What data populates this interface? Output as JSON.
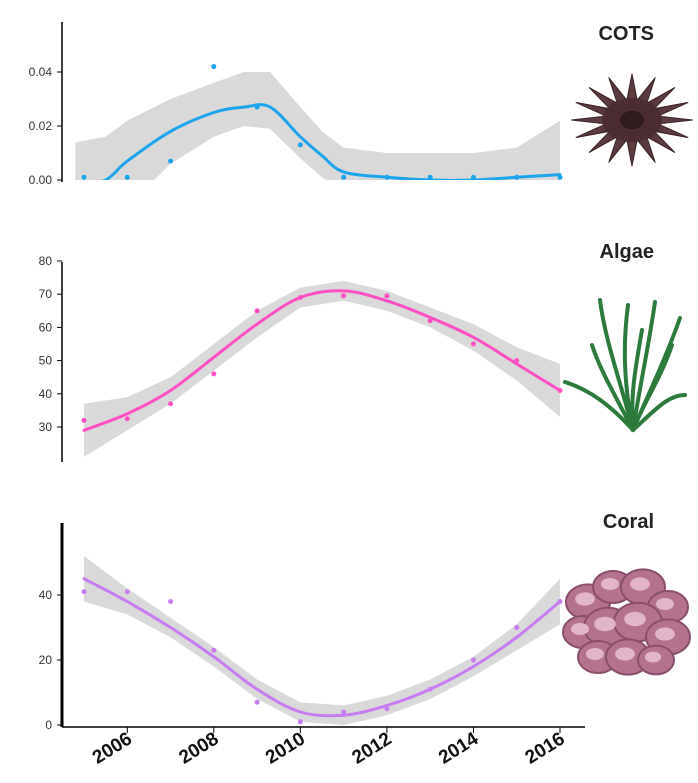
{
  "chart_data": [
    {
      "type": "scatter",
      "title": "COTS",
      "icon": "crown-of-thorns-starfish-icon",
      "color": "#1ca4ec",
      "band_color": "#d9d9d9",
      "ylim": [
        0,
        0.055
      ],
      "yticks": [
        0.0,
        0.02,
        0.04
      ],
      "ytick_labels": [
        "0.00",
        "0.02",
        "0.04"
      ],
      "points": [
        {
          "x": 2005.0,
          "y": 0.001
        },
        {
          "x": 2006.0,
          "y": 0.001
        },
        {
          "x": 2007.0,
          "y": 0.007
        },
        {
          "x": 2008.0,
          "y": 0.042
        },
        {
          "x": 2009.0,
          "y": 0.027
        },
        {
          "x": 2010.0,
          "y": 0.013
        },
        {
          "x": 2011.0,
          "y": 0.001
        },
        {
          "x": 2012.0,
          "y": 0.001
        },
        {
          "x": 2013.0,
          "y": 0.001
        },
        {
          "x": 2014.0,
          "y": 0.001
        },
        {
          "x": 2015.0,
          "y": 0.001
        },
        {
          "x": 2016.0,
          "y": 0.001
        }
      ],
      "smooth_x": [
        2004.8,
        2005.5,
        2006.0,
        2007.0,
        2008.0,
        2008.7,
        2009.3,
        2010.0,
        2010.5,
        2011.0,
        2012.0,
        2013.0,
        2014.0,
        2015.0,
        2016.0
      ],
      "smooth_y": [
        -0.003,
        0.0,
        0.007,
        0.018,
        0.025,
        0.027,
        0.027,
        0.016,
        0.009,
        0.003,
        0.001,
        0.0,
        0.0,
        0.001,
        0.002
      ],
      "smooth_lower": [
        -0.03,
        -0.02,
        -0.01,
        0.006,
        0.016,
        0.02,
        0.019,
        0.008,
        0.001,
        -0.004,
        -0.005,
        -0.005,
        -0.005,
        -0.008,
        -0.015
      ],
      "smooth_upper": [
        0.014,
        0.016,
        0.022,
        0.03,
        0.036,
        0.04,
        0.04,
        0.027,
        0.018,
        0.012,
        0.01,
        0.01,
        0.01,
        0.012,
        0.022
      ]
    },
    {
      "type": "scatter",
      "title": "Algae",
      "icon": "seaweed-icon",
      "color": "#ff4fc4",
      "band_color": "#d9d9d9",
      "ylim": [
        20,
        80
      ],
      "yticks": [
        30,
        40,
        50,
        60,
        70,
        80
      ],
      "ytick_labels": [
        "30",
        "40",
        "50",
        "60",
        "70",
        "80"
      ],
      "points": [
        {
          "x": 2005.0,
          "y": 32
        },
        {
          "x": 2006.0,
          "y": 32.5
        },
        {
          "x": 2007.0,
          "y": 37
        },
        {
          "x": 2008.0,
          "y": 46
        },
        {
          "x": 2009.0,
          "y": 65
        },
        {
          "x": 2010.0,
          "y": 69
        },
        {
          "x": 2011.0,
          "y": 69.5
        },
        {
          "x": 2012.0,
          "y": 69.5
        },
        {
          "x": 2013.0,
          "y": 62
        },
        {
          "x": 2014.0,
          "y": 55
        },
        {
          "x": 2015.0,
          "y": 50
        },
        {
          "x": 2016.0,
          "y": 41
        }
      ],
      "smooth_x": [
        2005,
        2006,
        2007,
        2008,
        2009,
        2010,
        2011,
        2012,
        2013,
        2014,
        2015,
        2016
      ],
      "smooth_y": [
        29,
        34,
        41,
        51,
        61,
        69,
        71,
        68,
        63,
        57,
        49,
        41
      ],
      "smooth_lower": [
        21,
        29,
        37,
        47,
        57,
        66,
        68,
        65,
        60,
        53,
        44,
        33
      ],
      "smooth_upper": [
        37,
        39,
        45,
        55,
        65,
        72,
        74,
        71,
        66,
        61,
        54,
        49
      ]
    },
    {
      "type": "scatter",
      "title": "Coral",
      "icon": "coral-icon",
      "color": "#c77cf2",
      "band_color": "#d9d9d9",
      "ylim": [
        0,
        50
      ],
      "yticks": [
        0,
        20,
        40
      ],
      "ytick_labels": [
        "0",
        "20",
        "40"
      ],
      "points": [
        {
          "x": 2005.0,
          "y": 41
        },
        {
          "x": 2006.0,
          "y": 41
        },
        {
          "x": 2007.0,
          "y": 38
        },
        {
          "x": 2008.0,
          "y": 23
        },
        {
          "x": 2009.0,
          "y": 7
        },
        {
          "x": 2010.0,
          "y": 1
        },
        {
          "x": 2011.0,
          "y": 4
        },
        {
          "x": 2012.0,
          "y": 5
        },
        {
          "x": 2013.0,
          "y": 11
        },
        {
          "x": 2014.0,
          "y": 20
        },
        {
          "x": 2015.0,
          "y": 30
        },
        {
          "x": 2016.0,
          "y": 38
        }
      ],
      "smooth_x": [
        2005,
        2006,
        2007,
        2008,
        2009,
        2010,
        2011,
        2012,
        2013,
        2014,
        2015,
        2016
      ],
      "smooth_y": [
        45,
        38,
        30,
        21,
        11,
        4,
        3,
        6,
        11,
        18,
        27,
        38
      ],
      "smooth_lower": [
        38,
        34,
        27,
        18,
        8,
        1,
        0,
        3,
        8,
        15,
        23,
        31
      ],
      "smooth_upper": [
        52,
        42,
        33,
        24,
        14,
        7,
        6,
        9,
        14,
        21,
        31,
        45
      ]
    }
  ],
  "x_axis": {
    "ticks": [
      2006,
      2008,
      2010,
      2012,
      2014,
      2016
    ],
    "tick_labels": [
      "2006",
      "2008",
      "2010",
      "2012",
      "2014",
      "2016"
    ],
    "xlim": [
      2004.6,
      2016.6
    ]
  }
}
